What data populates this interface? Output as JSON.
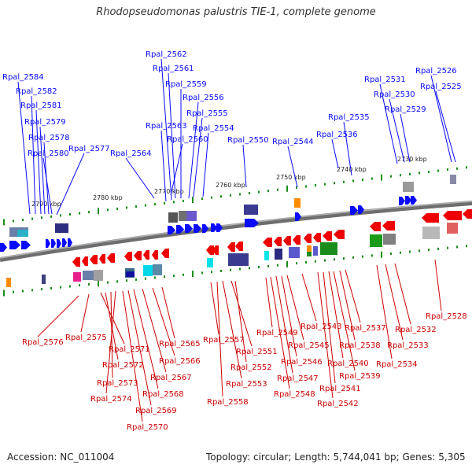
{
  "title": "Rhodopseudomonas palustris TIE-1, complete genome",
  "footer": {
    "accession": "Accession: NC_011004",
    "topology": "Topology: circular; Length: 5,744,041 bp; Genes: 5,305"
  },
  "colors": {
    "forward_label": "#0a0aff",
    "reverse_label": "#cc0000",
    "backbone": "#808080",
    "tick": "#1a8c1a"
  },
  "scale_labels": [
    "2790 kbp",
    "2780 kbp",
    "2770 kbp",
    "2760 kbp",
    "2750 kbp",
    "2740 kbp",
    "2730 kbp"
  ],
  "forward_genes": [
    "Rpal_2584",
    "Rpal_2582",
    "Rpal_2581",
    "Rpal_2579",
    "Rpal_2578",
    "Rpal_2580",
    "Rpal_2577",
    "Rpal_2564",
    "Rpal_2562",
    "Rpal_2561",
    "Rpal_2559",
    "Rpal_2556",
    "Rpal_2555",
    "Rpal_2563",
    "Rpal_2554",
    "Rpal_2560",
    "Rpal_2550",
    "Rpal_2544",
    "Rpal_2535",
    "Rpal_2536",
    "Rpal_2531",
    "Rpal_2530",
    "Rpal_2529",
    "Rpal_2526",
    "Rpal_2525"
  ],
  "reverse_genes": [
    "Rpal_2576",
    "Rpal_2575",
    "Rpal_2571",
    "Rpal_2572",
    "Rpal_2573",
    "Rpal_2574",
    "Rpal_2570",
    "Rpal_2569",
    "Rpal_2568",
    "Rpal_2567",
    "Rpal_2566",
    "Rpal_2565",
    "Rpal_2557",
    "Rpal_2558",
    "Rpal_2551",
    "Rpal_2552",
    "Rpal_2553",
    "Rpal_2549",
    "Rpal_2548",
    "Rpal_2547",
    "Rpal_2546",
    "Rpal_2545",
    "Rpal_2543",
    "Rpal_2542",
    "Rpal_2541",
    "Rpal_2540",
    "Rpal_2539",
    "Rpal_2538",
    "Rpal_2537",
    "Rpal_2534",
    "Rpal_2533",
    "Rpal_2532",
    "Rpal_2528"
  ]
}
